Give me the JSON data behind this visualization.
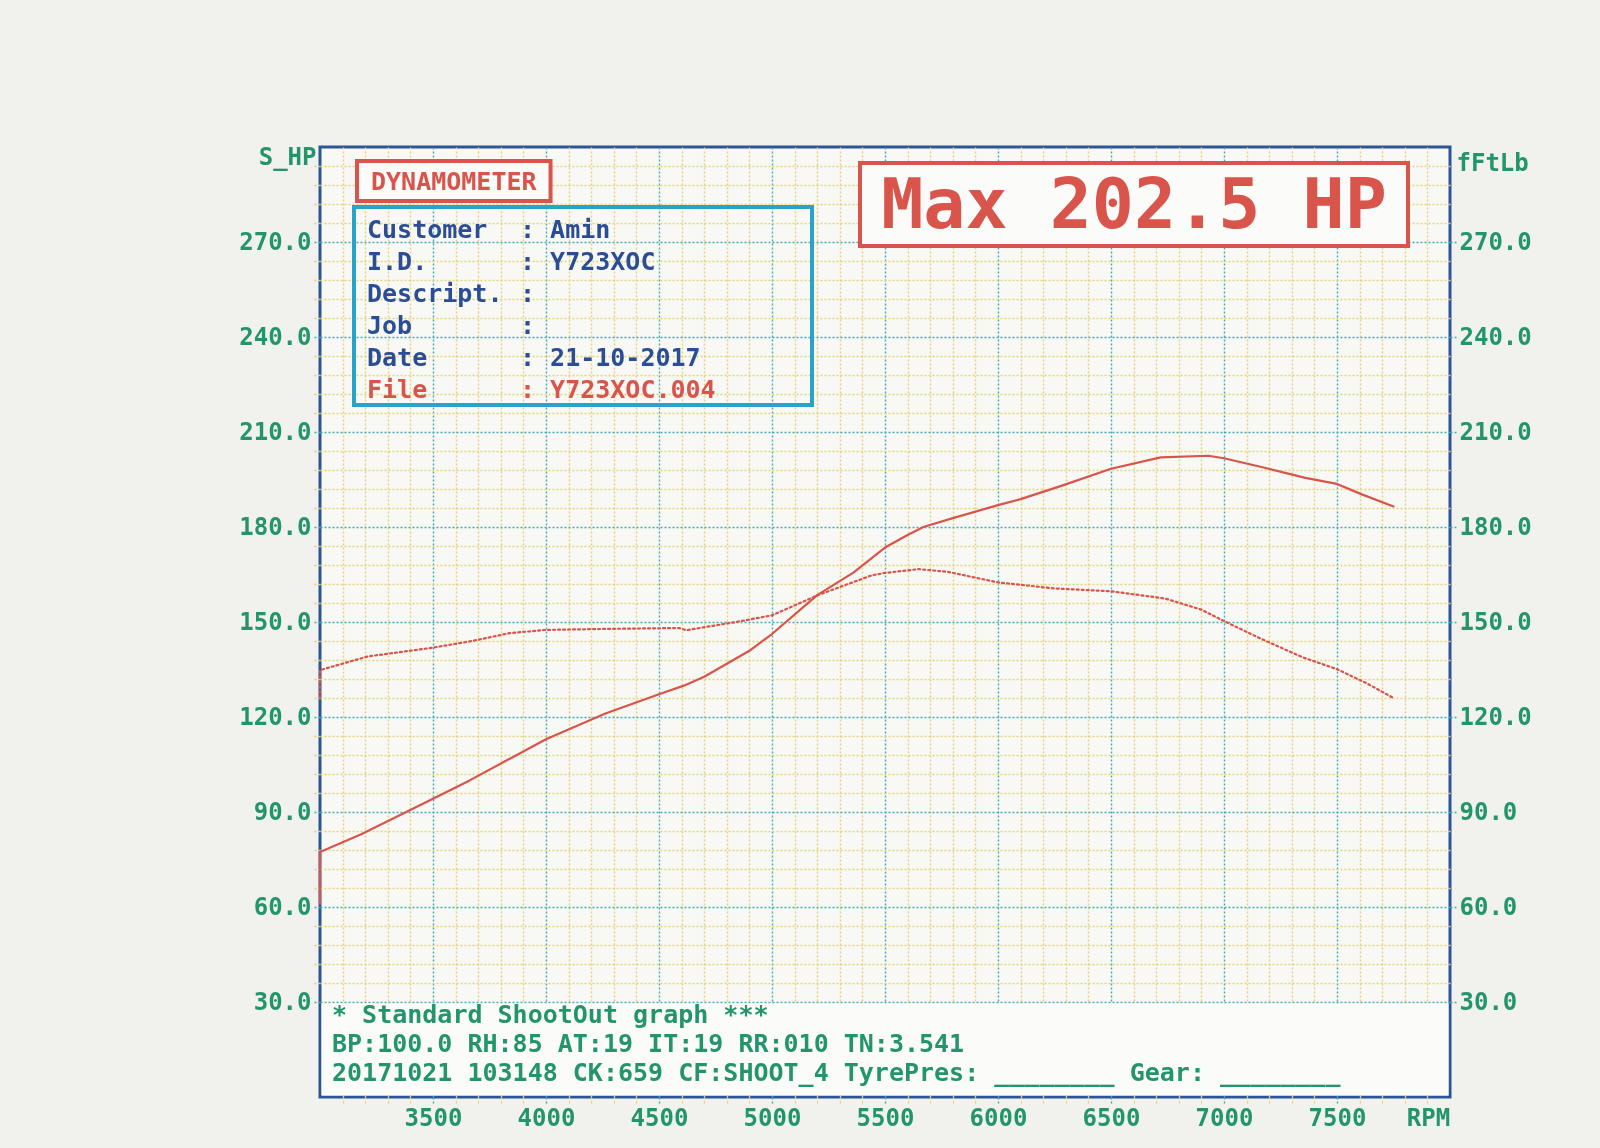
{
  "chart_data": {
    "type": "line",
    "xlabel": "RPM",
    "ylabel": "S_HP",
    "y2label": "fFtLb",
    "xlim": [
      3000,
      8000
    ],
    "ylim": [
      0,
      300
    ],
    "y2lim": [
      0,
      300
    ],
    "xticks": [
      {
        "value": 3100,
        "label": null
      },
      {
        "value": 3200,
        "label": null
      },
      {
        "value": 3300,
        "label": null
      },
      {
        "value": 3400,
        "label": null
      },
      3500,
      {
        "value": 3600,
        "label": null
      },
      {
        "value": 3700,
        "label": null
      },
      {
        "value": 3800,
        "label": null
      },
      {
        "value": 3900,
        "label": null
      },
      4000,
      {
        "value": 4100,
        "label": null
      },
      {
        "value": 4200,
        "label": null
      },
      {
        "value": 4300,
        "label": null
      },
      {
        "value": 4400,
        "label": null
      },
      4500,
      {
        "value": 4600,
        "label": null
      },
      {
        "value": 4700,
        "label": null
      },
      {
        "value": 4800,
        "label": null
      },
      {
        "value": 4900,
        "label": null
      },
      5000,
      {
        "value": 5100,
        "label": null
      },
      {
        "value": 5200,
        "label": null
      },
      {
        "value": 5300,
        "label": null
      },
      {
        "value": 5400,
        "label": null
      },
      5500,
      {
        "value": 5600,
        "label": null
      },
      {
        "value": 5700,
        "label": null
      },
      {
        "value": 5800,
        "label": null
      },
      {
        "value": 5900,
        "label": null
      },
      6000,
      {
        "value": 6100,
        "label": null
      },
      {
        "value": 6200,
        "label": null
      },
      {
        "value": 6300,
        "label": null
      },
      {
        "value": 6400,
        "label": null
      },
      6500,
      {
        "value": 6600,
        "label": null
      },
      {
        "value": 6700,
        "label": null
      },
      {
        "value": 6800,
        "label": null
      },
      {
        "value": 6900,
        "label": null
      },
      7000,
      {
        "value": 7100,
        "label": null
      },
      {
        "value": 7200,
        "label": null
      },
      {
        "value": 7300,
        "label": null
      },
      {
        "value": 7400,
        "label": null
      },
      7500,
      {
        "value": 7600,
        "label": null
      },
      {
        "value": 7700,
        "label": null
      },
      {
        "value": 7800,
        "label": null
      },
      {
        "value": 7900,
        "label": null
      }
    ],
    "yticks": [
      {
        "value": 30,
        "label": "30.0"
      },
      {
        "value": 36,
        "label": null
      },
      {
        "value": 42,
        "label": null
      },
      {
        "value": 48,
        "label": null
      },
      {
        "value": 54,
        "label": null
      },
      {
        "value": 60,
        "label": "60.0"
      },
      {
        "value": 66,
        "label": null
      },
      {
        "value": 72,
        "label": null
      },
      {
        "value": 78,
        "label": null
      },
      {
        "value": 84,
        "label": null
      },
      {
        "value": 90,
        "label": "90.0"
      },
      {
        "value": 96,
        "label": null
      },
      {
        "value": 102,
        "label": null
      },
      {
        "value": 108,
        "label": null
      },
      {
        "value": 114,
        "label": null
      },
      {
        "value": 120,
        "label": "120.0"
      },
      {
        "value": 126,
        "label": null
      },
      {
        "value": 132,
        "label": null
      },
      {
        "value": 138,
        "label": null
      },
      {
        "value": 144,
        "label": null
      },
      {
        "value": 150,
        "label": "150.0"
      },
      {
        "value": 156,
        "label": null
      },
      {
        "value": 162,
        "label": null
      },
      {
        "value": 168,
        "label": null
      },
      {
        "value": 174,
        "label": null
      },
      {
        "value": 180,
        "label": "180.0"
      },
      {
        "value": 186,
        "label": null
      },
      {
        "value": 192,
        "label": null
      },
      {
        "value": 198,
        "label": null
      },
      {
        "value": 204,
        "label": null
      },
      {
        "value": 210,
        "label": "210.0"
      },
      {
        "value": 216,
        "label": null
      },
      {
        "value": 222,
        "label": null
      },
      {
        "value": 228,
        "label": null
      },
      {
        "value": 234,
        "label": null
      },
      {
        "value": 240,
        "label": "240.0"
      },
      {
        "value": 246,
        "label": null
      },
      {
        "value": 252,
        "label": null
      },
      {
        "value": 258,
        "label": null
      },
      {
        "value": 264,
        "label": null
      },
      {
        "value": 270,
        "label": "270.0"
      },
      {
        "value": 276,
        "label": null
      },
      {
        "value": 282,
        "label": null
      },
      {
        "value": 288,
        "label": null
      },
      {
        "value": 294,
        "label": null
      }
    ],
    "y2ticks": [
      {
        "value": 30,
        "label": "30.0"
      },
      {
        "value": 60,
        "label": "60.0"
      },
      {
        "value": 90,
        "label": "90.0"
      },
      {
        "value": 120,
        "label": "120.0"
      },
      {
        "value": 150,
        "label": "150.0"
      },
      {
        "value": 180,
        "label": "180.0"
      },
      {
        "value": 210,
        "label": "210.0"
      },
      {
        "value": 240,
        "label": "240.0"
      },
      {
        "value": 270,
        "label": "270.0"
      }
    ],
    "grid": true,
    "series": [
      {
        "color": "#d9544a",
        "line_style": "solid",
        "x": [
          3000,
          3000,
          3180,
          3500,
          3660,
          4000,
          4260,
          4500,
          4610,
          4700,
          4900,
          5000,
          5200,
          5360,
          5500,
          5600,
          5670,
          5800,
          6000,
          6100,
          6280,
          6500,
          6720,
          6930,
          7000,
          7180,
          7360,
          7500,
          7610,
          7750
        ],
        "values": [
          61,
          77.4,
          82.9,
          94.2,
          99.9,
          113,
          121,
          127.2,
          129.9,
          132.7,
          140.9,
          146.2,
          158.5,
          165.6,
          173.5,
          177.5,
          180,
          182.8,
          186.9,
          188.8,
          193,
          198.4,
          202,
          202.5,
          201.7,
          198.7,
          195.5,
          193.6,
          190.3,
          186.5
        ]
      },
      {
        "color": "#d9544a",
        "line_style": "dotted",
        "axis": "y2",
        "x": [
          3000,
          3000,
          3210,
          3500,
          3680,
          3840,
          4000,
          4250,
          4590,
          4620,
          4840,
          5000,
          5200,
          5440,
          5500,
          5650,
          5780,
          6000,
          6250,
          6500,
          6740,
          6900,
          7000,
          7170,
          7350,
          7500,
          7630,
          7750
        ],
        "values": [
          126,
          134.8,
          139.1,
          141.9,
          144.1,
          146.5,
          147.5,
          147.8,
          148.1,
          147.4,
          150,
          152.1,
          158.4,
          164.7,
          165.5,
          166.7,
          165.8,
          162.5,
          160.6,
          159.7,
          157.4,
          153.9,
          150.3,
          144.5,
          138.8,
          135.1,
          130.7,
          126
        ]
      }
    ],
    "annotations": [
      "DYNAMOMETER",
      "Customer : Amin",
      "I.D. : Y723XOC",
      "Descript. :",
      "Job :",
      "Date : 21-10-2017",
      "File : Y723XOC.004",
      "Max 202.5 HP",
      "* Standard ShootOut graph ***",
      "BP:100.0 RH:85 AT:19 IT:19 RR:010 TN:3.541",
      "20171021 103148 CK:659 CF:SHOOT_4 TyrePres: ________ Gear: ________"
    ]
  }
}
